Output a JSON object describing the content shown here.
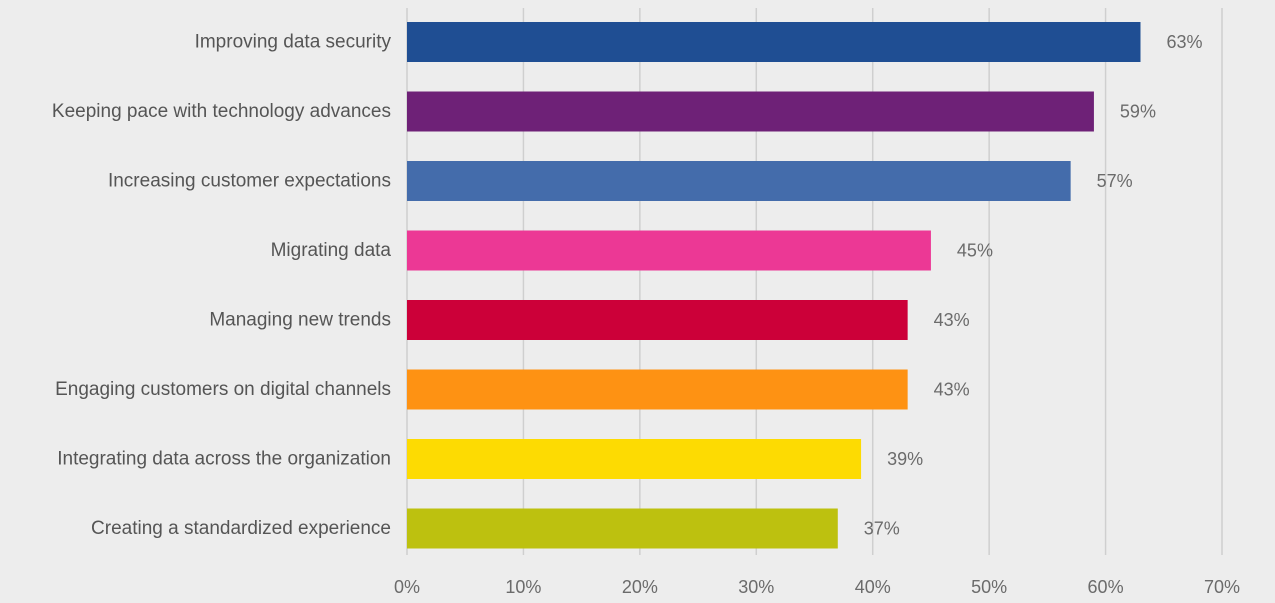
{
  "chart_data": {
    "type": "bar",
    "orientation": "horizontal",
    "title": "",
    "xlabel": "",
    "ylabel": "",
    "xlim": [
      0,
      70
    ],
    "x_ticks": [
      "0%",
      "10%",
      "20%",
      "30%",
      "40%",
      "50%",
      "60%",
      "70%"
    ],
    "grid": "vertical",
    "legend": "none",
    "categories": [
      "Improving data security",
      "Keeping pace with technology advances",
      "Increasing customer expectations",
      "Migrating data",
      "Managing new trends",
      "Engaging customers on digital channels",
      "Integrating data across the organization",
      "Creating a standardized experience"
    ],
    "values": [
      63,
      59,
      57,
      45,
      43,
      43,
      39,
      37
    ],
    "value_labels": [
      "63%",
      "59%",
      "57%",
      "45%",
      "43%",
      "43%",
      "39%",
      "37%"
    ],
    "colors": [
      "#1f4e93",
      "#6e2177",
      "#446cab",
      "#ec3895",
      "#cc0039",
      "#fe9213",
      "#fddb02",
      "#bdc10f"
    ]
  }
}
